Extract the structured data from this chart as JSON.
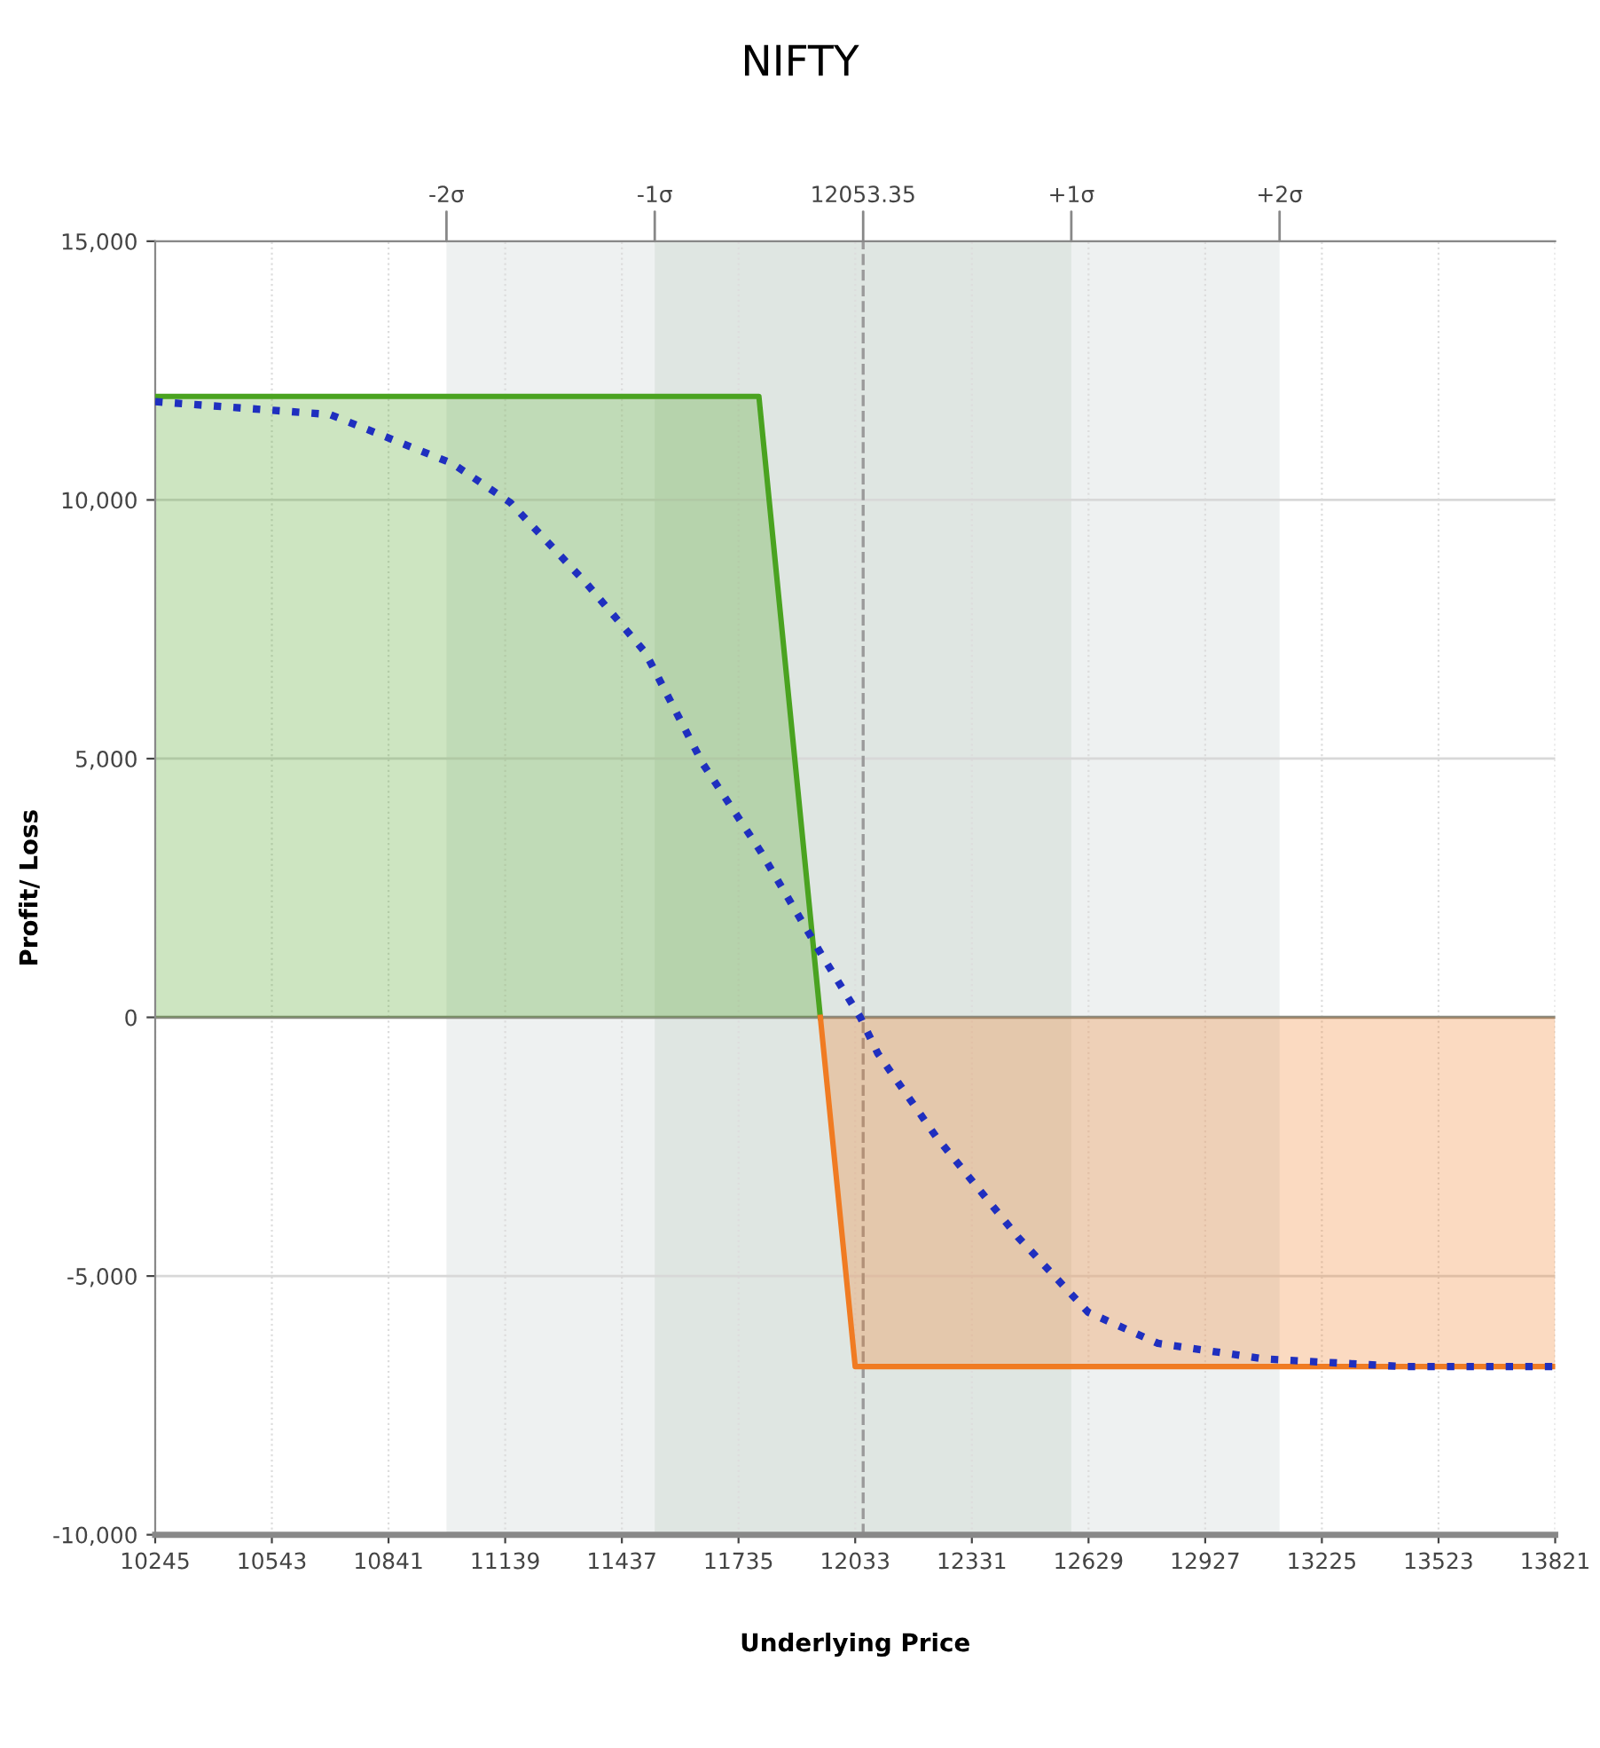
{
  "chart_data": {
    "type": "line",
    "title": "NIFTY",
    "xlabel": "Underlying Price",
    "ylabel": "Profit/ Loss",
    "xlim": [
      10245,
      13821
    ],
    "xticks": [
      10245,
      10543,
      10841,
      11139,
      11437,
      11735,
      12033,
      12331,
      12629,
      12927,
      13225,
      13523,
      13821
    ],
    "ylim": [
      -10000,
      15000
    ],
    "yticks": [
      {
        "value": -10000,
        "label": "-10,000"
      },
      {
        "value": -5000,
        "label": "-5,000"
      },
      0,
      {
        "value": 5000,
        "label": "5,000"
      },
      {
        "value": 10000,
        "label": "10,000"
      },
      {
        "value": 15000,
        "label": "15,000"
      }
    ],
    "annotations": [
      {
        "text": "-2σ",
        "x": 10989,
        "y": 15000
      },
      {
        "text": "-1σ",
        "x": 11521,
        "y": 15000
      },
      {
        "text": "+1σ",
        "x": 12585,
        "y": 15000
      },
      {
        "text": "+2σ",
        "x": 13117,
        "y": 15000
      }
    ],
    "grid": true,
    "bands": [
      {
        "axis": "x",
        "from": 10989,
        "to": 13117,
        "color": "#eef1f1"
      },
      {
        "axis": "x",
        "from": 11521,
        "to": 12585,
        "color": "#dfe6e2"
      }
    ],
    "ref_lines": [
      {
        "axis": "y",
        "value": 0,
        "color": "#8a8a80",
        "line_style": "solid"
      },
      {
        "axis": "x",
        "value": 12053.35,
        "label": "12053.35",
        "color": "#9a9a9a",
        "line_style": "dashed"
      }
    ],
    "series": [
      {
        "type": "area",
        "color": "#4aa320",
        "x": [
          10245,
          11787,
          11944
        ],
        "values": [
          12000,
          12000,
          0
        ]
      },
      {
        "type": "area",
        "color": "#f07b22",
        "x": [
          11944,
          12033,
          13821
        ],
        "values": [
          0,
          -6750,
          -6750
        ]
      },
      {
        "color": "#1f2fbf",
        "line_style": "dotted",
        "x": [
          10245,
          10692,
          11005,
          11152,
          11345,
          11497,
          11644,
          11792,
          11944,
          12046,
          12091,
          12239,
          12449,
          12628,
          12806,
          13075,
          13432,
          13821
        ],
        "values": [
          11900,
          11650,
          10700,
          9950,
          8400,
          7050,
          4900,
          3200,
          1250,
          0,
          -700,
          -2300,
          -4250,
          -5700,
          -6300,
          -6600,
          -6750,
          -6750
        ]
      }
    ]
  }
}
